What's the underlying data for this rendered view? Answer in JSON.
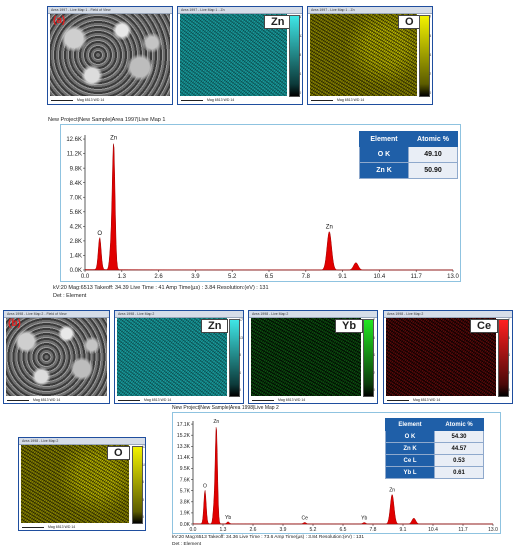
{
  "panel_a": {
    "tag": "(a)",
    "sem_header": "Area 1997 - Live Map 1 - Field of View",
    "sem_footer": "Mag 6513   WD 14",
    "zn_label": "Zn",
    "o_label": "O",
    "zn_colorbar_ticks": [
      "17",
      "13",
      "8",
      "4",
      "0"
    ],
    "o_colorbar_ticks": [
      "7",
      "5",
      "4",
      "2",
      "0"
    ],
    "map_header": "Area 1997 - Live Map 1 - Zn",
    "map_footer": "Mag 6513   WD 14",
    "project_title": "New Project|New Sample|Area 1997|Live Map 1",
    "info_line": "kV:20    Mag:6513    Takeoff: 34.39    Live Time : 41    Amp Time(µs) : 3.84    Resolution:(eV) : 131",
    "det_line": "Det : Element",
    "table": {
      "headers": [
        "Element",
        "Atomic %"
      ],
      "rows": [
        [
          "O K",
          "49.10"
        ],
        [
          "Zn K",
          "50.90"
        ]
      ]
    }
  },
  "panel_b": {
    "tag": "(b)",
    "sem_header": "Area 1998 - Live Map 2 - Field of View",
    "sem_footer": "Mag 6513   WD 14",
    "zn_label": "Zn",
    "yb_label": "Yb",
    "ce_label": "Ce",
    "o_label": "O",
    "zn_colorbar_ticks": [
      "17",
      "13",
      "8",
      "4",
      "0"
    ],
    "yb_colorbar_ticks": [
      "7",
      "5",
      "4",
      "2",
      "0"
    ],
    "ce_colorbar_ticks": [
      "7",
      "5",
      "4",
      "2",
      "0"
    ],
    "o_colorbar_ticks": [
      "13",
      "10",
      "6",
      "3",
      "0"
    ],
    "map_header": "Area 1998 - Live Map 2",
    "map_footer": "Mag 6513   WD 14",
    "project_title": "New Project|New Sample|Area 1998|Live Map 2",
    "info_line": "kV:20    Mag:6513    Takeoff: 34.36    Live Time : 73.6    Amp Time(µs) : 3.84    Resolution:(eV) : 131",
    "det_line": "Det : Element",
    "table": {
      "headers": [
        "Element",
        "Atomic %"
      ],
      "rows": [
        [
          "O K",
          "54.30"
        ],
        [
          "Zn K",
          "44.57"
        ],
        [
          "Ce L",
          "0.53"
        ],
        [
          "Yb L",
          "0.61"
        ]
      ]
    }
  },
  "chart_data": [
    {
      "type": "area",
      "title": "New Project|New Sample|Area 1997|Live Map 1",
      "xlabel": "",
      "ylabel": "",
      "x_ticks": [
        "0.0",
        "1.3",
        "2.6",
        "3.9",
        "5.2",
        "6.5",
        "7.8",
        "9.1",
        "10.4",
        "11.7",
        "13.0"
      ],
      "y_ticks": [
        "0.0K",
        "1.4K",
        "2.8K",
        "4.2K",
        "5.6K",
        "7.0K",
        "8.4K",
        "9.8K",
        "11.2K",
        "12.6K"
      ],
      "xlim": [
        0,
        13.0
      ],
      "ylim": [
        0,
        13.0
      ],
      "color": "#e00000",
      "peaks": [
        {
          "x": 0.52,
          "y": 3.1,
          "w": 0.05,
          "label": "O"
        },
        {
          "x": 1.01,
          "y": 12.3,
          "w": 0.05,
          "label": "Zn"
        },
        {
          "x": 0.9,
          "y": 1.5,
          "w": 0.04,
          "label": ""
        },
        {
          "x": 8.63,
          "y": 3.7,
          "w": 0.08,
          "label": "Zn"
        },
        {
          "x": 9.57,
          "y": 0.7,
          "w": 0.08,
          "label": ""
        }
      ]
    },
    {
      "type": "area",
      "title": "New Project|New Sample|Area 1998|Live Map 2",
      "xlabel": "",
      "ylabel": "",
      "x_ticks": [
        "0.0",
        "1.3",
        "2.6",
        "3.9",
        "5.2",
        "6.5",
        "7.8",
        "9.1",
        "10.4",
        "11.7",
        "13.0"
      ],
      "y_ticks": [
        "0.0K",
        "1.9K",
        "3.8K",
        "5.7K",
        "7.6K",
        "9.5K",
        "11.4K",
        "13.3K",
        "15.2K",
        "17.1K"
      ],
      "xlim": [
        0,
        13.0
      ],
      "ylim": [
        0,
        17.8
      ],
      "color": "#e00000",
      "peaks": [
        {
          "x": 0.52,
          "y": 5.8,
          "w": 0.05,
          "label": "O"
        },
        {
          "x": 1.01,
          "y": 16.9,
          "w": 0.05,
          "label": "Zn"
        },
        {
          "x": 0.9,
          "y": 2.2,
          "w": 0.04,
          "label": ""
        },
        {
          "x": 1.52,
          "y": 0.35,
          "w": 0.05,
          "label": "Yb"
        },
        {
          "x": 4.84,
          "y": 0.25,
          "w": 0.06,
          "label": "Ce"
        },
        {
          "x": 7.42,
          "y": 0.25,
          "w": 0.06,
          "label": "Yb"
        },
        {
          "x": 8.63,
          "y": 5.1,
          "w": 0.08,
          "label": "Zn"
        },
        {
          "x": 9.57,
          "y": 1.0,
          "w": 0.08,
          "label": ""
        }
      ]
    }
  ]
}
